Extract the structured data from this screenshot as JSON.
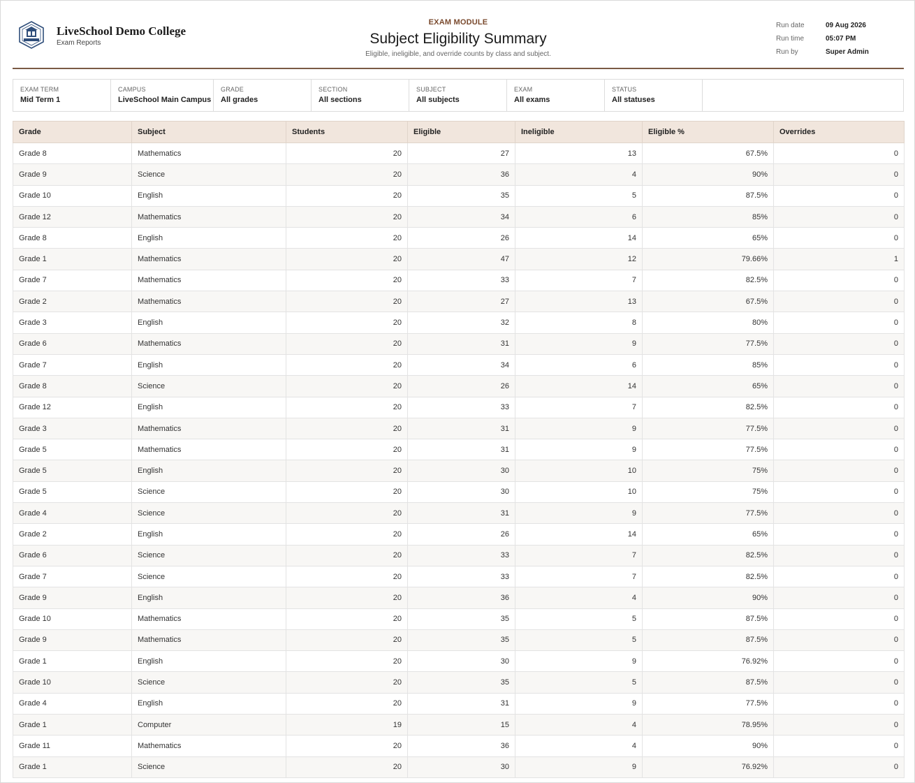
{
  "header": {
    "school_name": "LiveSchool Demo College",
    "school_sub": "Exam Reports",
    "module": "EXAM MODULE",
    "title": "Subject Eligibility Summary",
    "subtitle": "Eligible, ineligible, and override counts by class and subject.",
    "meta": [
      {
        "label": "Run date",
        "value": "09 Aug 2026"
      },
      {
        "label": "Run time",
        "value": "05:07 PM"
      },
      {
        "label": "Run by",
        "value": "Super Admin"
      }
    ]
  },
  "filters": [
    {
      "label": "Exam Term",
      "value": "Mid Term 1"
    },
    {
      "label": "Campus",
      "value": "LiveSchool Main Campus"
    },
    {
      "label": "Grade",
      "value": "All grades"
    },
    {
      "label": "Section",
      "value": "All sections"
    },
    {
      "label": "Subject",
      "value": "All subjects"
    },
    {
      "label": "Exam",
      "value": "All exams"
    },
    {
      "label": "Status",
      "value": "All statuses"
    }
  ],
  "table": {
    "columns": [
      "Grade",
      "Subject",
      "Students",
      "Eligible",
      "Ineligible",
      "Eligible %",
      "Overrides"
    ],
    "rows": [
      [
        "Grade 8",
        "Mathematics",
        "20",
        "27",
        "13",
        "67.5%",
        "0"
      ],
      [
        "Grade 9",
        "Science",
        "20",
        "36",
        "4",
        "90%",
        "0"
      ],
      [
        "Grade 10",
        "English",
        "20",
        "35",
        "5",
        "87.5%",
        "0"
      ],
      [
        "Grade 12",
        "Mathematics",
        "20",
        "34",
        "6",
        "85%",
        "0"
      ],
      [
        "Grade 8",
        "English",
        "20",
        "26",
        "14",
        "65%",
        "0"
      ],
      [
        "Grade 1",
        "Mathematics",
        "20",
        "47",
        "12",
        "79.66%",
        "1"
      ],
      [
        "Grade 7",
        "Mathematics",
        "20",
        "33",
        "7",
        "82.5%",
        "0"
      ],
      [
        "Grade 2",
        "Mathematics",
        "20",
        "27",
        "13",
        "67.5%",
        "0"
      ],
      [
        "Grade 3",
        "English",
        "20",
        "32",
        "8",
        "80%",
        "0"
      ],
      [
        "Grade 6",
        "Mathematics",
        "20",
        "31",
        "9",
        "77.5%",
        "0"
      ],
      [
        "Grade 7",
        "English",
        "20",
        "34",
        "6",
        "85%",
        "0"
      ],
      [
        "Grade 8",
        "Science",
        "20",
        "26",
        "14",
        "65%",
        "0"
      ],
      [
        "Grade 12",
        "English",
        "20",
        "33",
        "7",
        "82.5%",
        "0"
      ],
      [
        "Grade 3",
        "Mathematics",
        "20",
        "31",
        "9",
        "77.5%",
        "0"
      ],
      [
        "Grade 5",
        "Mathematics",
        "20",
        "31",
        "9",
        "77.5%",
        "0"
      ],
      [
        "Grade 5",
        "English",
        "20",
        "30",
        "10",
        "75%",
        "0"
      ],
      [
        "Grade 5",
        "Science",
        "20",
        "30",
        "10",
        "75%",
        "0"
      ],
      [
        "Grade 4",
        "Science",
        "20",
        "31",
        "9",
        "77.5%",
        "0"
      ],
      [
        "Grade 2",
        "English",
        "20",
        "26",
        "14",
        "65%",
        "0"
      ],
      [
        "Grade 6",
        "Science",
        "20",
        "33",
        "7",
        "82.5%",
        "0"
      ],
      [
        "Grade 7",
        "Science",
        "20",
        "33",
        "7",
        "82.5%",
        "0"
      ],
      [
        "Grade 9",
        "English",
        "20",
        "36",
        "4",
        "90%",
        "0"
      ],
      [
        "Grade 10",
        "Mathematics",
        "20",
        "35",
        "5",
        "87.5%",
        "0"
      ],
      [
        "Grade 9",
        "Mathematics",
        "20",
        "35",
        "5",
        "87.5%",
        "0"
      ],
      [
        "Grade 1",
        "English",
        "20",
        "30",
        "9",
        "76.92%",
        "0"
      ],
      [
        "Grade 10",
        "Science",
        "20",
        "35",
        "5",
        "87.5%",
        "0"
      ],
      [
        "Grade 4",
        "English",
        "20",
        "31",
        "9",
        "77.5%",
        "0"
      ],
      [
        "Grade 1",
        "Computer",
        "19",
        "15",
        "4",
        "78.95%",
        "0"
      ],
      [
        "Grade 11",
        "Mathematics",
        "20",
        "36",
        "4",
        "90%",
        "0"
      ],
      [
        "Grade 1",
        "Science",
        "20",
        "30",
        "9",
        "76.92%",
        "0"
      ]
    ]
  }
}
